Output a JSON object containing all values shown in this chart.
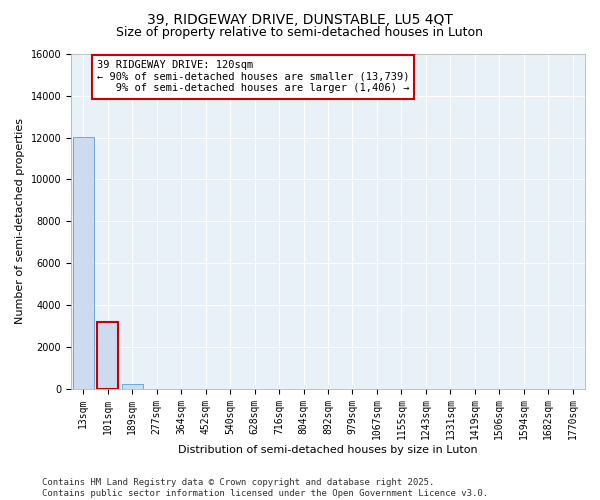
{
  "title_line1": "39, RIDGEWAY DRIVE, DUNSTABLE, LU5 4QT",
  "title_line2": "Size of property relative to semi-detached houses in Luton",
  "xlabel": "Distribution of semi-detached houses by size in Luton",
  "ylabel": "Number of semi-detached properties",
  "bin_labels": [
    "13sqm",
    "101sqm",
    "189sqm",
    "277sqm",
    "364sqm",
    "452sqm",
    "540sqm",
    "628sqm",
    "716sqm",
    "804sqm",
    "892sqm",
    "979sqm",
    "1067sqm",
    "1155sqm",
    "1243sqm",
    "1331sqm",
    "1419sqm",
    "1506sqm",
    "1594sqm",
    "1682sqm",
    "1770sqm"
  ],
  "bar_values": [
    12050,
    3200,
    200,
    0,
    0,
    0,
    0,
    0,
    0,
    0,
    0,
    0,
    0,
    0,
    0,
    0,
    0,
    0,
    0,
    0,
    0
  ],
  "bar_color": "#ccdcee",
  "bar_edge_color": "#6fa8dc",
  "highlight_bar_index": 1,
  "highlight_bar_edge_color": "#cc0000",
  "annotation_text": "39 RIDGEWAY DRIVE: 120sqm\n← 90% of semi-detached houses are smaller (13,739)\n   9% of semi-detached houses are larger (1,406) →",
  "annotation_box_facecolor": "#ffffff",
  "annotation_box_edgecolor": "#cc0000",
  "ylim": [
    0,
    16000
  ],
  "yticks": [
    0,
    2000,
    4000,
    6000,
    8000,
    10000,
    12000,
    14000,
    16000
  ],
  "background_color": "#ffffff",
  "plot_bg_color": "#e8f0f8",
  "grid_color": "#ffffff",
  "footer_text": "Contains HM Land Registry data © Crown copyright and database right 2025.\nContains public sector information licensed under the Open Government Licence v3.0.",
  "title_fontsize": 10,
  "subtitle_fontsize": 9,
  "axis_label_fontsize": 8,
  "tick_fontsize": 7,
  "annotation_fontsize": 7.5,
  "footer_fontsize": 6.5
}
